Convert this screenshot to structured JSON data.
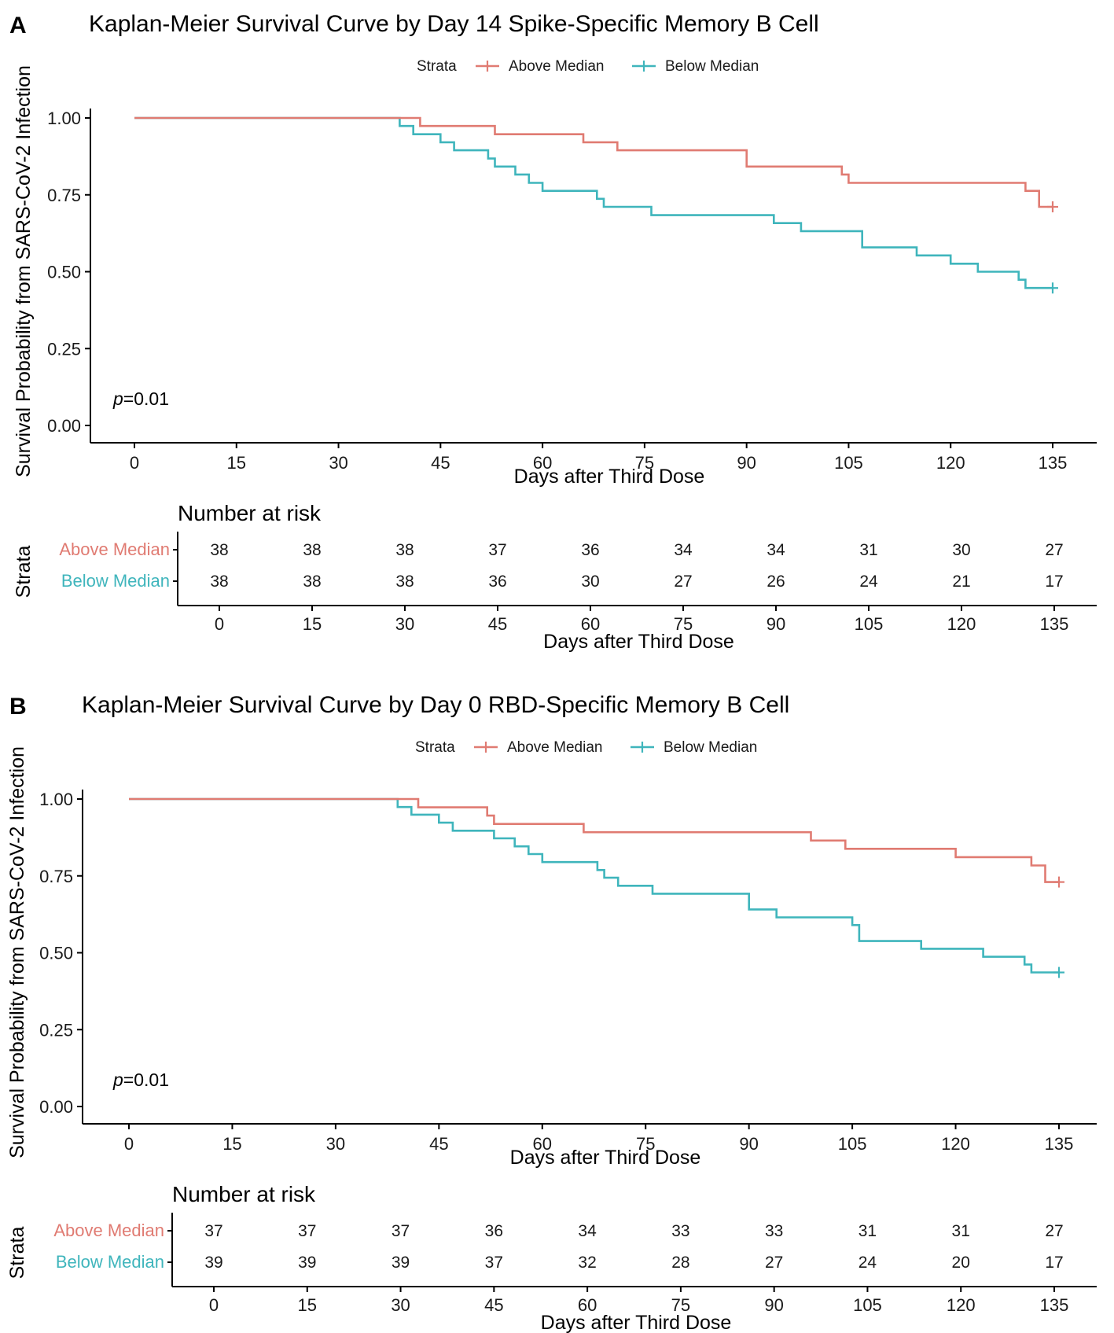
{
  "colors": {
    "above": "#E07B72",
    "below": "#3FB5BC",
    "axis": "#000000"
  },
  "chart_data": [
    {
      "type": "line",
      "panel_label": "A",
      "title": "Kaplan-Meier Survival Curve by Day 14 Spike-Specific Memory B Cell",
      "xlabel": "Days after Third Dose",
      "ylabel": "Survival Probability from SARS-CoV-2 Infection",
      "xlim": [
        -4,
        141
      ],
      "ylim": [
        -0.04,
        1.04
      ],
      "x_ticks": [
        "0",
        "15",
        "30",
        "45",
        "60",
        "75",
        "90",
        "105",
        "120",
        "135"
      ],
      "y_ticks": [
        "0.00",
        "0.25",
        "0.50",
        "0.75",
        "1.00"
      ],
      "legend": {
        "title": "Strata",
        "entries": [
          "Above Median",
          "Below Median"
        ],
        "position": "top"
      },
      "p_value": {
        "prefix": "p",
        "suffix": "=0.01"
      },
      "series": [
        {
          "name": "Above Median",
          "color_key": "above",
          "steps": [
            [
              0,
              1.0
            ],
            [
              42,
              0.974
            ],
            [
              53,
              0.947
            ],
            [
              66,
              0.921
            ],
            [
              71,
              0.895
            ],
            [
              90,
              0.842
            ],
            [
              104,
              0.816
            ],
            [
              105,
              0.789
            ],
            [
              131,
              0.763
            ],
            [
              133,
              0.711
            ],
            [
              135,
              0.711
            ]
          ],
          "censor": [
            135,
            0.711
          ]
        },
        {
          "name": "Below Median",
          "color_key": "below",
          "steps": [
            [
              0,
              1.0
            ],
            [
              39,
              0.974
            ],
            [
              41,
              0.947
            ],
            [
              45,
              0.921
            ],
            [
              47,
              0.895
            ],
            [
              52,
              0.868
            ],
            [
              53,
              0.842
            ],
            [
              56,
              0.816
            ],
            [
              58,
              0.789
            ],
            [
              60,
              0.763
            ],
            [
              68,
              0.737
            ],
            [
              69,
              0.711
            ],
            [
              76,
              0.684
            ],
            [
              94,
              0.658
            ],
            [
              98,
              0.632
            ],
            [
              107,
              0.579
            ],
            [
              115,
              0.553
            ],
            [
              120,
              0.526
            ],
            [
              124,
              0.5
            ],
            [
              130,
              0.474
            ],
            [
              131,
              0.447
            ],
            [
              135,
              0.447
            ]
          ],
          "censor": [
            135,
            0.447
          ]
        }
      ],
      "risk_table": {
        "title": "Number at risk",
        "strata_label": "Strata",
        "xlabel": "Days after Third Dose",
        "times": [
          "0",
          "15",
          "30",
          "45",
          "60",
          "75",
          "90",
          "105",
          "120",
          "135"
        ],
        "rows": [
          {
            "name": "Above Median",
            "color_key": "above",
            "values": [
              "38",
              "38",
              "38",
              "37",
              "36",
              "34",
              "34",
              "31",
              "30",
              "27"
            ]
          },
          {
            "name": "Below Median",
            "color_key": "below",
            "values": [
              "38",
              "38",
              "38",
              "36",
              "30",
              "27",
              "26",
              "24",
              "21",
              "17"
            ]
          }
        ]
      }
    },
    {
      "type": "line",
      "panel_label": "B",
      "title": "Kaplan-Meier Survival Curve by Day 0 RBD-Specific Memory B Cell",
      "xlabel": "Days after Third Dose",
      "ylabel": "Survival Probability from SARS-CoV-2 Infection",
      "xlim": [
        -4,
        141
      ],
      "ylim": [
        -0.04,
        1.04
      ],
      "x_ticks": [
        "0",
        "15",
        "30",
        "45",
        "60",
        "75",
        "90",
        "105",
        "120",
        "135"
      ],
      "y_ticks": [
        "0.00",
        "0.25",
        "0.50",
        "0.75",
        "1.00"
      ],
      "legend": {
        "title": "Strata",
        "entries": [
          "Above Median",
          "Below Median"
        ],
        "position": "top"
      },
      "p_value": {
        "prefix": "p",
        "suffix": "=0.01"
      },
      "series": [
        {
          "name": "Above Median",
          "color_key": "above",
          "steps": [
            [
              0,
              1.0
            ],
            [
              42,
              0.973
            ],
            [
              52,
              0.946
            ],
            [
              53,
              0.919
            ],
            [
              66,
              0.892
            ],
            [
              99,
              0.865
            ],
            [
              104,
              0.838
            ],
            [
              120,
              0.811
            ],
            [
              131,
              0.784
            ],
            [
              133,
              0.73
            ],
            [
              135,
              0.73
            ]
          ],
          "censor": [
            135,
            0.73
          ]
        },
        {
          "name": "Below Median",
          "color_key": "below",
          "steps": [
            [
              0,
              1.0
            ],
            [
              39,
              0.974
            ],
            [
              41,
              0.949
            ],
            [
              45,
              0.923
            ],
            [
              47,
              0.897
            ],
            [
              53,
              0.872
            ],
            [
              56,
              0.846
            ],
            [
              58,
              0.821
            ],
            [
              60,
              0.795
            ],
            [
              68,
              0.769
            ],
            [
              69,
              0.744
            ],
            [
              71,
              0.718
            ],
            [
              76,
              0.692
            ],
            [
              90,
              0.641
            ],
            [
              94,
              0.615
            ],
            [
              105,
              0.59
            ],
            [
              106,
              0.538
            ],
            [
              115,
              0.513
            ],
            [
              124,
              0.487
            ],
            [
              130,
              0.462
            ],
            [
              131,
              0.436
            ],
            [
              135,
              0.436
            ]
          ],
          "censor": [
            135,
            0.436
          ]
        }
      ],
      "risk_table": {
        "title": "Number at risk",
        "strata_label": "Strata",
        "xlabel": "Days after Third Dose",
        "times": [
          "0",
          "15",
          "30",
          "45",
          "60",
          "75",
          "90",
          "105",
          "120",
          "135"
        ],
        "rows": [
          {
            "name": "Above Median",
            "color_key": "above",
            "values": [
              "37",
              "37",
              "37",
              "36",
              "34",
              "33",
              "33",
              "31",
              "31",
              "27"
            ]
          },
          {
            "name": "Below Median",
            "color_key": "below",
            "values": [
              "39",
              "39",
              "39",
              "37",
              "32",
              "28",
              "27",
              "24",
              "20",
              "17"
            ]
          }
        ]
      }
    }
  ]
}
